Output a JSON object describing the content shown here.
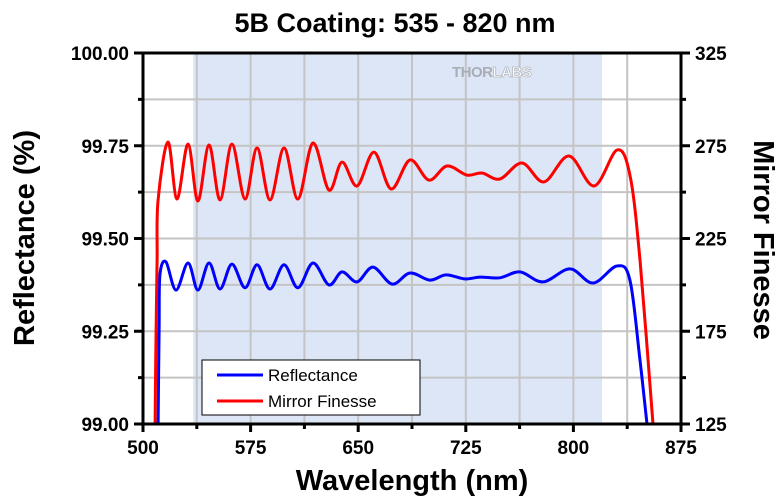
{
  "chart_data": {
    "type": "line",
    "title": "5B Coating: 535 - 820 nm",
    "xlabel": "Wavelength (nm)",
    "ylabel": "Reflectance (%)",
    "y2label": "Mirror Finesse",
    "xlim": [
      500,
      875
    ],
    "ylim": [
      99.0,
      100.0
    ],
    "y2lim": [
      125,
      325
    ],
    "xticks": [
      "500",
      "575",
      "650",
      "725",
      "800",
      "875"
    ],
    "xtick_values": [
      500,
      575,
      650,
      725,
      800,
      875
    ],
    "x_minor_step": 37.5,
    "yticks": [
      "99.00",
      "99.25",
      "99.50",
      "99.75",
      "100.00"
    ],
    "ytick_values": [
      99.0,
      99.25,
      99.5,
      99.75,
      100.0
    ],
    "y2ticks": [
      "125",
      "175",
      "225",
      "275",
      "325"
    ],
    "y2tick_values": [
      125,
      175,
      225,
      275,
      325
    ],
    "grid": true,
    "shaded_band": {
      "from": 535,
      "to": 820,
      "color": "#dde6f6"
    },
    "watermark": {
      "dark": "THOR",
      "light": "LABS"
    },
    "legend": {
      "position": "bottom-left",
      "entries": [
        "Reflectance",
        "Mirror Finesse"
      ]
    },
    "series": [
      {
        "name": "Reflectance",
        "axis": "left",
        "color": "#0000ff",
        "points": [
          [
            510.5,
            99.0
          ],
          [
            511.2,
            99.253
          ],
          [
            511.8,
            99.402
          ],
          [
            516.0,
            99.437
          ],
          [
            523.0,
            99.361
          ],
          [
            531.4,
            99.434
          ],
          [
            538.3,
            99.361
          ],
          [
            546.0,
            99.434
          ],
          [
            553.7,
            99.364
          ],
          [
            562.0,
            99.431
          ],
          [
            571.1,
            99.367
          ],
          [
            579.5,
            99.429
          ],
          [
            588.5,
            99.364
          ],
          [
            598.3,
            99.429
          ],
          [
            608.0,
            99.367
          ],
          [
            618.5,
            99.434
          ],
          [
            629.6,
            99.375
          ],
          [
            638.7,
            99.41
          ],
          [
            649.2,
            99.383
          ],
          [
            660.3,
            99.423
          ],
          [
            673.6,
            99.377
          ],
          [
            686.1,
            99.407
          ],
          [
            700.0,
            99.388
          ],
          [
            711.2,
            99.402
          ],
          [
            724.4,
            99.391
          ],
          [
            734.9,
            99.396
          ],
          [
            748.8,
            99.394
          ],
          [
            762.8,
            99.41
          ],
          [
            778.8,
            99.383
          ],
          [
            797.6,
            99.418
          ],
          [
            813.7,
            99.38
          ],
          [
            830.4,
            99.426
          ],
          [
            839.4,
            99.388
          ],
          [
            846.4,
            99.172
          ],
          [
            851.3,
            99.0
          ]
        ]
      },
      {
        "name": "Mirror Finesse",
        "axis": "right",
        "color": "#ff0000",
        "points": [
          [
            508.4,
            125
          ],
          [
            509.1,
            175.7
          ],
          [
            509.8,
            213.4
          ],
          [
            510.5,
            245.8
          ],
          [
            517.4,
            277.0
          ],
          [
            523.7,
            246.3
          ],
          [
            531.4,
            275.9
          ],
          [
            538.3,
            245.2
          ],
          [
            546.0,
            275.4
          ],
          [
            553.7,
            245.8
          ],
          [
            562.0,
            275.9
          ],
          [
            571.1,
            246.3
          ],
          [
            579.5,
            273.8
          ],
          [
            588.5,
            245.8
          ],
          [
            598.3,
            273.8
          ],
          [
            608.0,
            246.3
          ],
          [
            618.5,
            276.5
          ],
          [
            629.6,
            251.1
          ],
          [
            638.7,
            266.2
          ],
          [
            649.2,
            253.3
          ],
          [
            661.0,
            271.6
          ],
          [
            672.9,
            251.7
          ],
          [
            686.1,
            267.3
          ],
          [
            699.3,
            256.5
          ],
          [
            711.9,
            264.1
          ],
          [
            725.8,
            259.2
          ],
          [
            736.3,
            260.3
          ],
          [
            748.8,
            257.1
          ],
          [
            764.2,
            265.7
          ],
          [
            779.5,
            255.5
          ],
          [
            796.9,
            269.5
          ],
          [
            814.4,
            253.3
          ],
          [
            830.4,
            272.7
          ],
          [
            839.4,
            259.2
          ],
          [
            846.4,
            213.4
          ],
          [
            855.5,
            125
          ]
        ]
      }
    ]
  }
}
